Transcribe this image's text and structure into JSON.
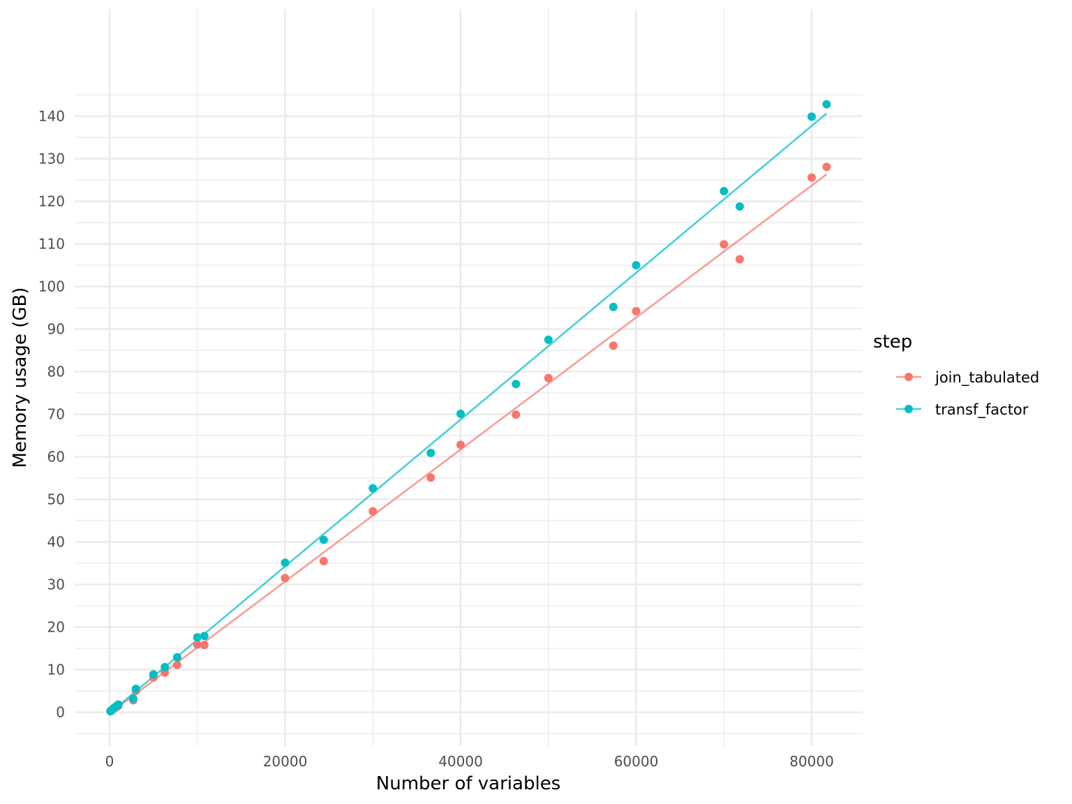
{
  "chart_data": {
    "type": "scatter",
    "title": "",
    "xlabel": "Number of variables",
    "ylabel": "Memory usage (GB)",
    "xlim": [
      -2000,
      86000
    ],
    "ylim": [
      -5,
      150
    ],
    "x_ticks": [
      0,
      20000,
      40000,
      60000,
      80000
    ],
    "x_tick_labels": [
      "0",
      "20000",
      "40000",
      "60000",
      "80000"
    ],
    "y_ticks": [
      0,
      10,
      20,
      30,
      40,
      50,
      60,
      70,
      80,
      90,
      100,
      110,
      120,
      130,
      140
    ],
    "y_tick_labels": [
      "0",
      "10",
      "20",
      "30",
      "40",
      "50",
      "60",
      "70",
      "80",
      "90",
      "100",
      "110",
      "120",
      "130",
      "140"
    ],
    "grid": true,
    "legend": {
      "title": "step",
      "position": "right"
    },
    "series": [
      {
        "name": "join_tabulated",
        "color": "#F8766D",
        "fit_line": true,
        "points": [
          [
            100,
            0.2
          ],
          [
            300,
            0.5
          ],
          [
            500,
            0.9
          ],
          [
            800,
            1.2
          ],
          [
            1000,
            1.5
          ],
          [
            2700,
            2.8
          ],
          [
            3000,
            5.0
          ],
          [
            5000,
            8.2
          ],
          [
            6300,
            9.3
          ],
          [
            7700,
            11.1
          ],
          [
            10000,
            15.9
          ],
          [
            10800,
            15.8
          ],
          [
            20000,
            31.5
          ],
          [
            24400,
            35.5
          ],
          [
            30000,
            47.2
          ],
          [
            36600,
            55.1
          ],
          [
            40000,
            62.8
          ],
          [
            46300,
            69.9
          ],
          [
            50000,
            78.5
          ],
          [
            57400,
            86.1
          ],
          [
            60000,
            94.2
          ],
          [
            70000,
            109.9
          ],
          [
            71800,
            106.4
          ],
          [
            80000,
            125.6
          ],
          [
            81700,
            128.1
          ]
        ]
      },
      {
        "name": "transf_factor",
        "color": "#00BFC4",
        "fit_line": true,
        "points": [
          [
            100,
            0.3
          ],
          [
            300,
            0.6
          ],
          [
            500,
            1.0
          ],
          [
            800,
            1.5
          ],
          [
            1000,
            1.8
          ],
          [
            2700,
            3.2
          ],
          [
            3000,
            5.5
          ],
          [
            5000,
            8.9
          ],
          [
            6300,
            10.6
          ],
          [
            7700,
            12.9
          ],
          [
            10000,
            17.6
          ],
          [
            10800,
            17.9
          ],
          [
            20000,
            35.1
          ],
          [
            24400,
            40.5
          ],
          [
            30000,
            52.6
          ],
          [
            36600,
            60.9
          ],
          [
            40000,
            70.1
          ],
          [
            46300,
            77.1
          ],
          [
            50000,
            87.5
          ],
          [
            57400,
            95.2
          ],
          [
            60000,
            105.0
          ],
          [
            70000,
            122.4
          ],
          [
            71800,
            118.8
          ],
          [
            80000,
            139.9
          ],
          [
            81700,
            142.8
          ]
        ]
      }
    ]
  }
}
